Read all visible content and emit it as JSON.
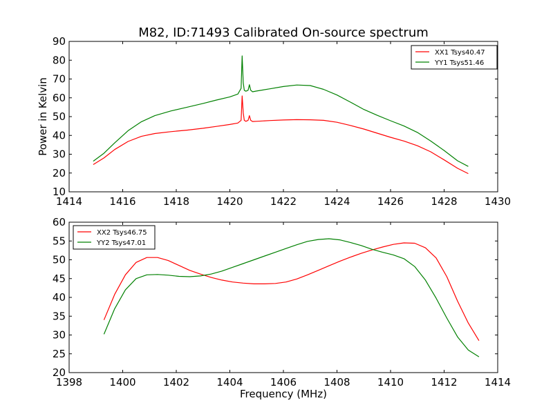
{
  "title": "M82, ID:71493 Calibrated On-source spectrum",
  "chart_data": [
    {
      "type": "line",
      "title": "M82, ID:71493 Calibrated On-source spectrum",
      "xlabel": "",
      "ylabel": "Power in Kelvin",
      "xlim": [
        1414,
        1430
      ],
      "ylim": [
        10,
        90
      ],
      "xticks": [
        "1414",
        "1416",
        "1418",
        "1420",
        "1422",
        "1424",
        "1426",
        "1428",
        "1430"
      ],
      "yticks": [
        "10",
        "20",
        "30",
        "40",
        "50",
        "60",
        "70",
        "80",
        "90"
      ],
      "legend_position": "top-right",
      "grid": false,
      "series": [
        {
          "name": "XX1 Tsys40.47",
          "color": "#ff0000",
          "x": [
            1414.9,
            1415.3,
            1415.7,
            1416.2,
            1416.7,
            1417.2,
            1417.8,
            1418.4,
            1419.0,
            1419.5,
            1420.0,
            1420.3,
            1420.42,
            1420.46,
            1420.5,
            1420.54,
            1420.6,
            1420.68,
            1420.73,
            1420.78,
            1420.85,
            1421.0,
            1421.5,
            1422.0,
            1422.5,
            1423.0,
            1423.5,
            1424.0,
            1424.5,
            1425.0,
            1425.5,
            1426.0,
            1426.5,
            1427.0,
            1427.5,
            1428.0,
            1428.5,
            1428.9
          ],
          "y": [
            24.5,
            28,
            32.5,
            36.8,
            39.5,
            41,
            42,
            42.8,
            43.8,
            44.8,
            45.8,
            46.6,
            48,
            61,
            52,
            48,
            47.5,
            48,
            50.5,
            48,
            47.4,
            47.5,
            47.9,
            48.2,
            48.4,
            48.3,
            48,
            47,
            45.3,
            43.4,
            41.2,
            39,
            37,
            34.5,
            31.3,
            27,
            22.5,
            19.7
          ]
        },
        {
          "name": "YY1 Tsys51.46",
          "color": "#008000",
          "x": [
            1414.9,
            1415.3,
            1415.7,
            1416.2,
            1416.7,
            1417.2,
            1417.8,
            1418.4,
            1419.0,
            1419.5,
            1420.0,
            1420.3,
            1420.42,
            1420.46,
            1420.5,
            1420.54,
            1420.6,
            1420.68,
            1420.73,
            1420.78,
            1420.85,
            1421.0,
            1421.5,
            1422.0,
            1422.5,
            1423.0,
            1423.5,
            1424.0,
            1424.5,
            1425.0,
            1425.5,
            1426.0,
            1426.5,
            1427.0,
            1427.5,
            1428.0,
            1428.5,
            1428.9
          ],
          "y": [
            26.3,
            30.5,
            36,
            42.5,
            47.3,
            50.5,
            53,
            55,
            57,
            58.8,
            60.5,
            62,
            65,
            82.3,
            68,
            64,
            63.5,
            64,
            67,
            64,
            63.2,
            63.6,
            64.8,
            66,
            66.8,
            66.5,
            64.5,
            61.5,
            57.7,
            53.8,
            50.7,
            47.8,
            45,
            41.6,
            37,
            32,
            26.5,
            23.5
          ]
        }
      ]
    },
    {
      "type": "line",
      "title": "",
      "xlabel": "Frequency (MHz)",
      "ylabel": "",
      "xlim": [
        1398,
        1414
      ],
      "ylim": [
        20,
        60
      ],
      "xticks": [
        "1398",
        "1400",
        "1402",
        "1404",
        "1406",
        "1408",
        "1410",
        "1412",
        "1414"
      ],
      "yticks": [
        "20",
        "25",
        "30",
        "35",
        "40",
        "45",
        "50",
        "55",
        "60"
      ],
      "legend_position": "top-left",
      "grid": false,
      "series": [
        {
          "name": "XX2 Tsys46.75",
          "color": "#ff0000",
          "x": [
            1399.3,
            1399.7,
            1400.1,
            1400.5,
            1400.9,
            1401.3,
            1401.7,
            1402.1,
            1402.5,
            1402.9,
            1403.3,
            1403.7,
            1404.1,
            1404.5,
            1404.9,
            1405.3,
            1405.7,
            1406.1,
            1406.5,
            1406.9,
            1407.3,
            1407.7,
            1408.1,
            1408.5,
            1408.9,
            1409.3,
            1409.7,
            1410.1,
            1410.5,
            1410.9,
            1411.3,
            1411.7,
            1412.1,
            1412.5,
            1412.9,
            1413.3
          ],
          "y": [
            34,
            40.8,
            46,
            49.3,
            50.6,
            50.6,
            49.8,
            48.5,
            47.2,
            46.2,
            45.3,
            44.6,
            44.1,
            43.8,
            43.6,
            43.6,
            43.7,
            44.1,
            44.9,
            46,
            47.2,
            48.4,
            49.6,
            50.7,
            51.7,
            52.6,
            53.4,
            54.1,
            54.5,
            54.4,
            53.2,
            50.5,
            45.5,
            39,
            33.2,
            28.5
          ]
        },
        {
          "name": "YY2 Tsys47.01",
          "color": "#008000",
          "x": [
            1399.3,
            1399.7,
            1400.1,
            1400.5,
            1400.9,
            1401.3,
            1401.7,
            1402.1,
            1402.5,
            1402.9,
            1403.3,
            1403.7,
            1404.1,
            1404.5,
            1404.9,
            1405.3,
            1405.7,
            1406.1,
            1406.5,
            1406.9,
            1407.3,
            1407.7,
            1408.1,
            1408.5,
            1408.9,
            1409.3,
            1409.7,
            1410.1,
            1410.5,
            1410.9,
            1411.3,
            1411.7,
            1412.1,
            1412.5,
            1412.9,
            1413.3
          ],
          "y": [
            30.2,
            37,
            42,
            45,
            46,
            46.1,
            45.9,
            45.6,
            45.5,
            45.7,
            46.2,
            47,
            48,
            49,
            50,
            51,
            52,
            53,
            54,
            54.9,
            55.4,
            55.6,
            55.3,
            54.6,
            53.8,
            52.8,
            52,
            51.3,
            50.3,
            48.2,
            44.6,
            39.8,
            34.5,
            29.5,
            26,
            24.2
          ]
        }
      ]
    }
  ]
}
